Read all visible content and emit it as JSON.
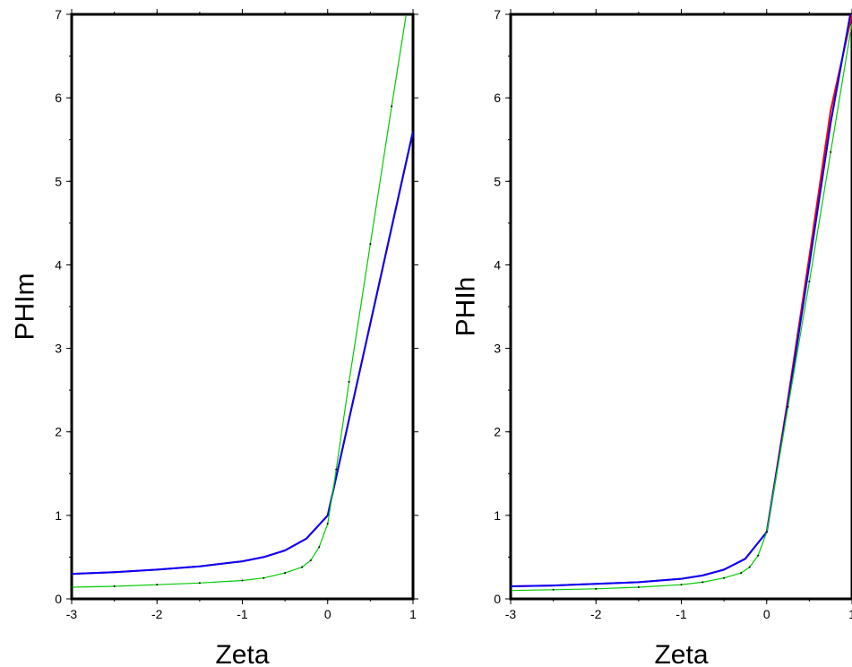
{
  "chart_data": [
    {
      "type": "line",
      "title": "",
      "xlabel": "Zeta",
      "ylabel": "PHIm",
      "xlim": [
        -3,
        1
      ],
      "ylim": [
        0,
        7
      ],
      "xticks": [
        "-3",
        "-2",
        "-1",
        "0",
        "1"
      ],
      "yticks": [
        "0",
        "1",
        "2",
        "3",
        "4",
        "5",
        "6",
        "7"
      ],
      "grid": false,
      "series": [
        {
          "color": "#ff0000",
          "x": [
            -3,
            -2.5,
            -2,
            -1.5,
            -1,
            -0.75,
            -0.5,
            -0.25,
            0,
            0.25,
            0.5,
            0.75,
            1
          ],
          "y": [
            0.3,
            0.32,
            0.35,
            0.39,
            0.45,
            0.5,
            0.58,
            0.72,
            1.0,
            2.15,
            3.3,
            4.45,
            5.6
          ]
        },
        {
          "color": "#0000ff",
          "x": [
            -3,
            -2.5,
            -2,
            -1.5,
            -1,
            -0.75,
            -0.5,
            -0.25,
            0,
            0.25,
            0.5,
            0.75,
            1
          ],
          "y": [
            0.3,
            0.32,
            0.35,
            0.39,
            0.45,
            0.5,
            0.58,
            0.72,
            1.0,
            2.15,
            3.3,
            4.45,
            5.6
          ]
        },
        {
          "color": "#00cc00",
          "x": [
            -3,
            -2.5,
            -2,
            -1.5,
            -1,
            -0.75,
            -0.5,
            -0.3,
            -0.2,
            -0.1,
            0,
            0.1,
            0.25,
            0.5,
            0.75,
            0.92
          ],
          "y": [
            0.14,
            0.15,
            0.17,
            0.19,
            0.22,
            0.25,
            0.31,
            0.38,
            0.46,
            0.62,
            0.9,
            1.55,
            2.6,
            4.25,
            5.9,
            7.0
          ]
        }
      ]
    },
    {
      "type": "line",
      "title": "",
      "xlabel": "Zeta",
      "ylabel": "PHIh",
      "xlim": [
        -3,
        1
      ],
      "ylim": [
        0,
        7
      ],
      "xticks": [
        "-3",
        "-2",
        "-1",
        "0",
        "1"
      ],
      "yticks": [
        "0",
        "1",
        "2",
        "3",
        "4",
        "5",
        "6",
        "7"
      ],
      "grid": false,
      "series": [
        {
          "color": "#ff0000",
          "x": [
            -3,
            -2.5,
            -2,
            -1.5,
            -1,
            -0.75,
            -0.5,
            -0.25,
            0,
            0.25,
            0.5,
            0.75,
            1
          ],
          "y": [
            0.15,
            0.16,
            0.18,
            0.2,
            0.24,
            0.28,
            0.35,
            0.48,
            0.8,
            2.4,
            4.1,
            5.85,
            7.0
          ]
        },
        {
          "color": "#0000ff",
          "x": [
            -3,
            -2.5,
            -2,
            -1.5,
            -1,
            -0.75,
            -0.5,
            -0.25,
            0,
            0.25,
            0.5,
            0.75,
            0.98
          ],
          "y": [
            0.15,
            0.16,
            0.18,
            0.2,
            0.24,
            0.28,
            0.35,
            0.48,
            0.8,
            2.35,
            4.0,
            5.7,
            7.0
          ]
        },
        {
          "color": "#00cc00",
          "x": [
            -3,
            -2.5,
            -2,
            -1.5,
            -1,
            -0.75,
            -0.5,
            -0.3,
            -0.2,
            -0.1,
            0,
            0.25,
            0.5,
            0.75,
            1
          ],
          "y": [
            0.1,
            0.11,
            0.12,
            0.14,
            0.17,
            0.2,
            0.25,
            0.31,
            0.38,
            0.52,
            0.8,
            2.3,
            3.8,
            5.35,
            6.9
          ]
        }
      ]
    }
  ]
}
